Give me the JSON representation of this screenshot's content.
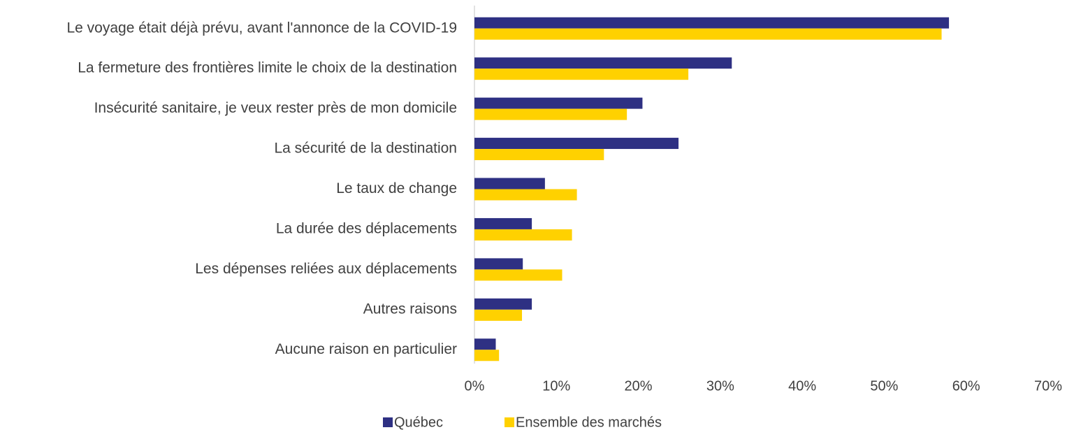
{
  "chart_data": {
    "type": "bar",
    "orientation": "horizontal",
    "categories": [
      "Le voyage était déjà prévu, avant l'annonce de la COVID-19",
      "La fermeture des frontières limite le choix de la destination",
      "Insécurité sanitaire, je veux rester près de mon domicile",
      "La sécurité de la destination",
      "Le taux de change",
      "La durée des déplacements",
      "Les dépenses reliées aux déplacements",
      "Autres raisons",
      "Aucune raison en particulier"
    ],
    "series": [
      {
        "name": "Québec",
        "color": "#2e3083",
        "values": [
          57.9,
          31.4,
          20.5,
          24.9,
          8.6,
          7.0,
          5.9,
          7.0,
          2.6
        ]
      },
      {
        "name": "Ensemble des marchés",
        "color": "#ffd100",
        "values": [
          57.0,
          26.1,
          18.6,
          15.8,
          12.5,
          11.9,
          10.7,
          5.8,
          3.0
        ]
      }
    ],
    "xlim": [
      0,
      70
    ],
    "xticks": [
      {
        "value": 0,
        "label": "0%"
      },
      {
        "value": 10,
        "label": "10%"
      },
      {
        "value": 20,
        "label": "20%"
      },
      {
        "value": 30,
        "label": "30%"
      },
      {
        "value": 40,
        "label": "40%"
      },
      {
        "value": 50,
        "label": "50%"
      },
      {
        "value": 60,
        "label": "60%"
      },
      {
        "value": 70,
        "label": "70%"
      }
    ],
    "grid": false,
    "legend": "bottom"
  }
}
